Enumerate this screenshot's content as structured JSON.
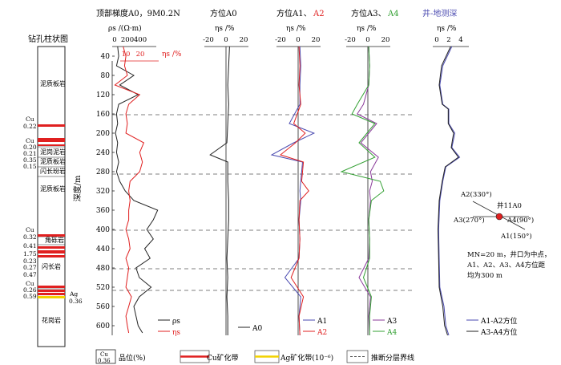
{
  "titles": {
    "borehole": "钻孔柱状图",
    "panel1": "顶部梯度A0，9M0.2N",
    "panel2": "方位A0",
    "panel3_a": "方位A1、",
    "panel3_b": "A2",
    "panel4_a": "方位A3、",
    "panel4_b": "A4",
    "panel5": "井-地测深"
  },
  "axes": {
    "depth_label": "深度/m",
    "rho_label": "ρs /(Ω·m)",
    "eta_label": "ηs /%",
    "eta_red_label": "ηs /%",
    "depth_ticks": [
      "40",
      "80",
      "120",
      "160",
      "200",
      "240",
      "280",
      "320",
      "360",
      "400",
      "440",
      "480",
      "520",
      "560",
      "600"
    ],
    "rho_ticks": [
      "0",
      "200",
      "400"
    ],
    "eta_red_ticks": [
      "10",
      "20"
    ],
    "ticks_p2": [
      "-20",
      "0",
      "20"
    ],
    "ticks_p3": [
      "-20",
      "0",
      "20"
    ],
    "ticks_p4": [
      "-20",
      "0",
      "20"
    ],
    "ticks_p5": [
      "0",
      "2",
      "4"
    ]
  },
  "borehole": {
    "rock_labels": [
      "泥质板岩",
      "泥岗泥岩",
      "泥质板岩",
      "闪长玢岩",
      "泥质板岩",
      "角砾岩",
      "闪长岩",
      "花岗岩"
    ],
    "cu_grades": [
      {
        "label": "Cu",
        "value": "0.22"
      },
      {
        "label": "Cu",
        "value": "0.20"
      },
      {
        "label": "",
        "value": "0.21"
      },
      {
        "label": "",
        "value": "0.35"
      },
      {
        "label": "",
        "value": "0.15"
      },
      {
        "label": "Cu",
        "value": "0.32"
      },
      {
        "label": "",
        "value": "0.41"
      },
      {
        "label": "",
        "value": "1.75"
      },
      {
        "label": "",
        "value": "0.23"
      },
      {
        "label": "",
        "value": "0.27"
      },
      {
        "label": "",
        "value": "0.47"
      },
      {
        "label": "Cu",
        "value": "0.26"
      },
      {
        "label": "",
        "value": "0.59"
      }
    ],
    "ag": {
      "label": "Ag",
      "value": "0.36"
    }
  },
  "legends": {
    "p1": [
      "ρs",
      "ηs"
    ],
    "p2": [
      "A0"
    ],
    "p3": [
      "A1",
      "A2"
    ],
    "p4": [
      "A3",
      "A4"
    ],
    "p5": [
      "A1-A2方位",
      "A3-A4方位"
    ]
  },
  "diagram": {
    "well": "井11A0",
    "a1": "A1(150°)",
    "a2": "A2(330°)",
    "a3": "A3(270°)",
    "a4": "A4(90°)",
    "note": [
      "MN=20 m，井口为中点，",
      "A1、A2、A3、A4方位距",
      "均为300 m"
    ]
  },
  "bottom_legend": {
    "grade_box_top": "Cu",
    "grade_box_bottom": "0.36",
    "grade_text": "品位(%)",
    "cu_zone": "Cu矿化带",
    "ag_zone": "Ag矿化带(10⁻⁶)",
    "boundary": "推断分层界线"
  },
  "colors": {
    "black": "#222222",
    "red": "#e02020",
    "blue": "#4a4ab0",
    "green": "#33a033",
    "purple": "#8a3a9a",
    "yellow": "#f2d200",
    "dash": "#555555"
  },
  "chart_data": [
    {
      "type": "line",
      "title": "顶部梯度A0，9M0.2N",
      "depth": [
        20,
        40,
        60,
        80,
        100,
        120,
        140,
        160,
        180,
        200,
        220,
        240,
        260,
        280,
        300,
        320,
        340,
        360,
        380,
        400,
        420,
        440,
        460,
        480,
        500,
        520,
        540,
        560,
        580,
        600,
        615
      ],
      "series": [
        {
          "name": "ρs",
          "unit": "Ω·m",
          "values": [
            50,
            60,
            40,
            200,
            70,
            240,
            60,
            40,
            50,
            30,
            50,
            40,
            60,
            40,
            70,
            120,
            200,
            420,
            380,
            320,
            380,
            300,
            350,
            220,
            250,
            360,
            250,
            200,
            220,
            240,
            280
          ]
        },
        {
          "name": "ηs",
          "unit": "%",
          "values": [
            8,
            10,
            9,
            11,
            2,
            20,
            12,
            10,
            11,
            10,
            23,
            20,
            22,
            20,
            13,
            12,
            13,
            12,
            12,
            10,
            12,
            13,
            10,
            12,
            11,
            10,
            14,
            12,
            10,
            11,
            12
          ]
        }
      ],
      "depth_range": [
        20,
        620
      ],
      "rho_range": [
        0,
        400
      ],
      "eta_range": [
        0,
        35
      ]
    },
    {
      "type": "line",
      "title": "方位A0",
      "depth": [
        20,
        60,
        100,
        140,
        180,
        220,
        245,
        260,
        300,
        340,
        380,
        420,
        460,
        500,
        540,
        580,
        620
      ],
      "series": [
        {
          "name": "A0",
          "values": [
            4,
            3,
            2,
            3,
            2,
            1,
            -18,
            2,
            2,
            3,
            3,
            2,
            1,
            2,
            1,
            2,
            2
          ]
        }
      ],
      "x_range": [
        -20,
        20
      ]
    },
    {
      "type": "line",
      "title": "方位A1、A2",
      "depth": [
        20,
        60,
        100,
        140,
        180,
        200,
        220,
        245,
        260,
        300,
        320,
        340,
        380,
        420,
        460,
        500,
        540,
        580,
        620
      ],
      "series": [
        {
          "name": "A1",
          "values": [
            2,
            3,
            2,
            2,
            -10,
            18,
            -5,
            -30,
            5,
            3,
            2,
            3,
            1,
            2,
            1,
            -15,
            3,
            1,
            2
          ]
        },
        {
          "name": "A2",
          "values": [
            1,
            2,
            1,
            3,
            -5,
            8,
            -3,
            -20,
            6,
            4,
            12,
            2,
            1,
            2,
            1,
            -8,
            6,
            1,
            2
          ]
        }
      ],
      "x_range": [
        -20,
        20
      ]
    },
    {
      "type": "line",
      "title": "方位A3、A4",
      "depth": [
        20,
        60,
        100,
        140,
        160,
        180,
        220,
        250,
        280,
        300,
        320,
        340,
        380,
        420,
        460,
        500,
        540,
        580,
        620
      ],
      "series": [
        {
          "name": "A3",
          "values": [
            1,
            2,
            1,
            -5,
            -12,
            10,
            -8,
            12,
            3,
            5,
            2,
            3,
            1,
            2,
            1,
            -10,
            3,
            1,
            2
          ]
        },
        {
          "name": "A4",
          "values": [
            1,
            2,
            1,
            -12,
            -18,
            8,
            -10,
            8,
            -30,
            14,
            18,
            4,
            1,
            2,
            2,
            -5,
            4,
            2,
            2
          ]
        }
      ],
      "x_range": [
        -20,
        20
      ]
    },
    {
      "type": "line",
      "title": "井-地测深",
      "depth": [
        20,
        60,
        100,
        140,
        150,
        180,
        200,
        230,
        250,
        270,
        300,
        340,
        400,
        460,
        520,
        560,
        600,
        620
      ],
      "series": [
        {
          "name": "A1-A2方位",
          "values": [
            2.5,
            1,
            0.5,
            1,
            2,
            2,
            3,
            2.5,
            3.8,
            1.5,
            1,
            0.5,
            0.3,
            0.4,
            0.5,
            1.2,
            1.5,
            2
          ]
        },
        {
          "name": "A3-A4方位",
          "values": [
            2.3,
            0.8,
            0.4,
            0.9,
            1.9,
            1.9,
            2.8,
            2.4,
            3.6,
            1.4,
            0.9,
            0.4,
            0.2,
            0.3,
            0.4,
            1,
            1.3,
            1.8
          ]
        }
      ],
      "x_range": [
        0,
        4
      ]
    }
  ]
}
